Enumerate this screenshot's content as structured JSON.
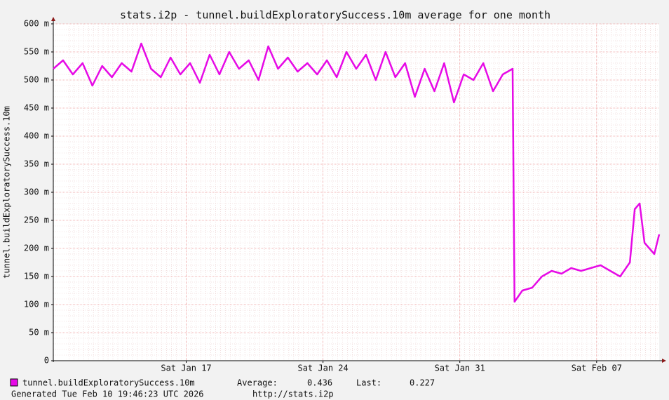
{
  "chart_data": {
    "type": "line",
    "title": "stats.i2p - tunnel.buildExploratorySuccess.10m average for one month",
    "y_label": "tunnel.buildExploratorySuccess.10m",
    "x": [
      0,
      0.5,
      1,
      1.5,
      2,
      2.5,
      3,
      3.5,
      4,
      4.5,
      5,
      5.5,
      6,
      6.5,
      7,
      7.5,
      8,
      8.5,
      9,
      9.5,
      10,
      10.5,
      11,
      11.5,
      12,
      12.5,
      13,
      13.5,
      14,
      14.5,
      15,
      15.5,
      16,
      16.5,
      17,
      17.5,
      18,
      18.5,
      19,
      19.5,
      20,
      20.5,
      21,
      21.5,
      22,
      22.5,
      23,
      23.5,
      23.6,
      24,
      24.5,
      25,
      25.5,
      26,
      26.5,
      27,
      27.5,
      28,
      28.5,
      29,
      29.5,
      29.75,
      30,
      30.25,
      30.5,
      30.75,
      31
    ],
    "series": [
      {
        "name": "tunnel.buildExploratorySuccess.10m",
        "color": "#e60ae6",
        "values": [
          0.52,
          0.535,
          0.51,
          0.53,
          0.49,
          0.525,
          0.505,
          0.53,
          0.515,
          0.565,
          0.52,
          0.505,
          0.54,
          0.51,
          0.53,
          0.495,
          0.545,
          0.51,
          0.55,
          0.52,
          0.535,
          0.5,
          0.56,
          0.52,
          0.54,
          0.515,
          0.53,
          0.51,
          0.535,
          0.505,
          0.55,
          0.52,
          0.545,
          0.5,
          0.55,
          0.505,
          0.53,
          0.47,
          0.52,
          0.48,
          0.53,
          0.46,
          0.51,
          0.5,
          0.53,
          0.48,
          0.51,
          0.52,
          0.105,
          0.125,
          0.13,
          0.15,
          0.16,
          0.155,
          0.165,
          0.16,
          0.165,
          0.17,
          0.16,
          0.15,
          0.175,
          0.27,
          0.28,
          0.21,
          0.2,
          0.19,
          0.225
        ]
      }
    ],
    "xlim": [
      0,
      31
    ],
    "xticks": [
      {
        "value": 6.8,
        "label": "Sat Jan 17"
      },
      {
        "value": 13.8,
        "label": "Sat Jan 24"
      },
      {
        "value": 20.8,
        "label": "Sat Jan 31"
      },
      {
        "value": 27.8,
        "label": "Sat Feb 07"
      }
    ],
    "ylim": [
      0,
      0.6
    ],
    "yticks": [
      0,
      {
        "value": 0.05,
        "label": "50 m"
      },
      {
        "value": 0.1,
        "label": "100 m"
      },
      {
        "value": 0.15,
        "label": "150 m"
      },
      {
        "value": 0.2,
        "label": "200 m"
      },
      {
        "value": 0.25,
        "label": "250 m"
      },
      {
        "value": 0.3,
        "label": "300 m"
      },
      {
        "value": 0.35,
        "label": "350 m"
      },
      {
        "value": 0.4,
        "label": "400 m"
      },
      {
        "value": 0.45,
        "label": "450 m"
      },
      {
        "value": 0.5,
        "label": "500 m"
      },
      {
        "value": 0.55,
        "label": "550 m"
      },
      {
        "value": 0.6,
        "label": "600 m"
      }
    ],
    "grid": true,
    "average_label": "Average:",
    "average": 0.436,
    "last_label": "Last:",
    "last": 0.227,
    "footer": "Generated Tue Feb 10 19:46:23 UTC 2026",
    "footer_url": "http://stats.i2p"
  }
}
